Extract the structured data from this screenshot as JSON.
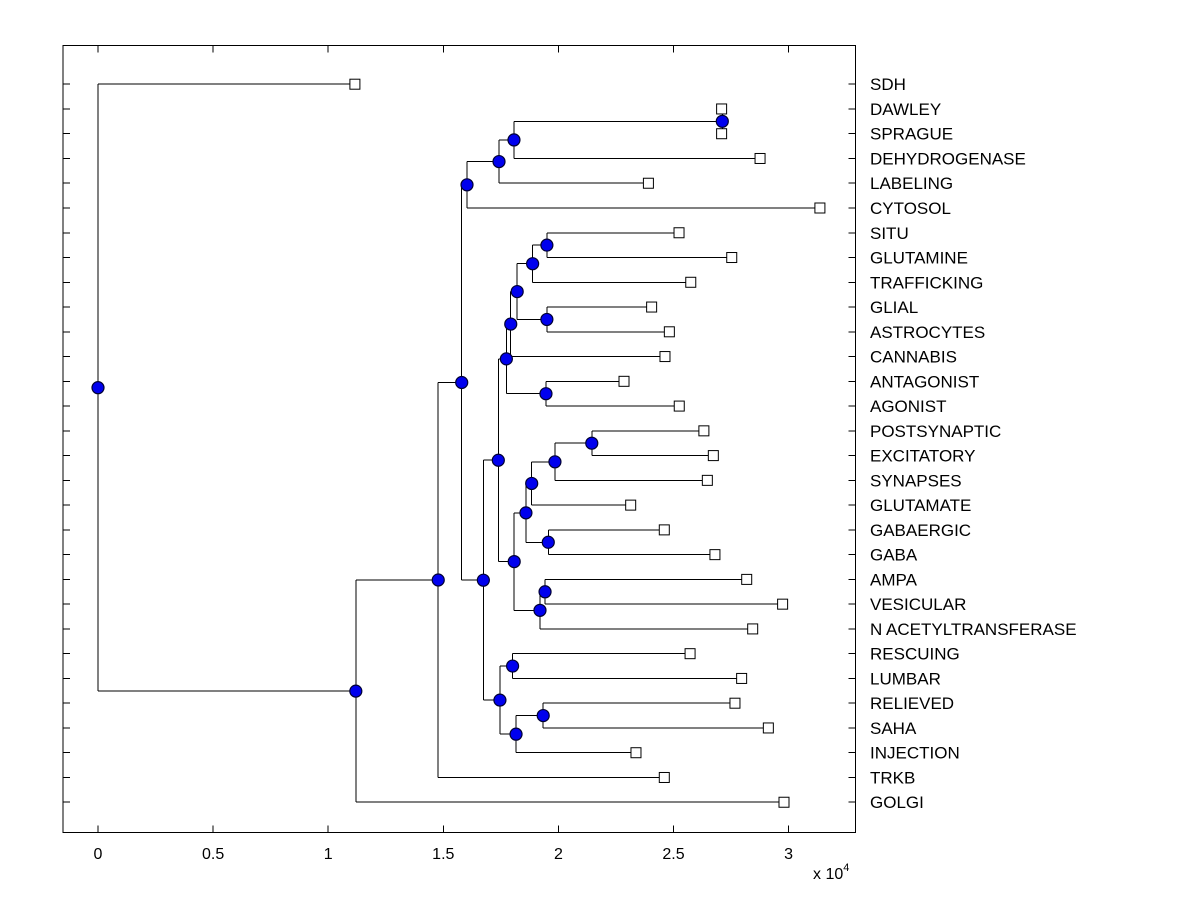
{
  "figure": {
    "background": "#ffffff",
    "kind": "dendrogram-plot"
  },
  "style": {
    "line_color": "#000000",
    "internal_node_fill": "#0000EE",
    "internal_node_edge": "#000033",
    "leaf_marker_fill": "#FFFFFF",
    "leaf_marker_edge": "#000000",
    "text_color": "#000000"
  },
  "chart_data": {
    "type": "dendrogram",
    "title": "",
    "xlabel": "",
    "ylabel": "",
    "grid": false,
    "legend": null,
    "orientation": "left-to-right",
    "x_axis": {
      "unit_scale": 10000,
      "multiplier_prefix": "x 10",
      "multiplier_exponent": "4",
      "range": [
        -0.152,
        3.291
      ],
      "ticks": [
        {
          "value": 0,
          "label": "0"
        },
        {
          "value": 0.5,
          "label": "0.5"
        },
        {
          "value": 1,
          "label": "1"
        },
        {
          "value": 1.5,
          "label": "1.5"
        },
        {
          "value": 2,
          "label": "2"
        },
        {
          "value": 2.5,
          "label": "2.5"
        },
        {
          "value": 3,
          "label": "3"
        }
      ]
    },
    "leaf_order_note": "distances are in x-axis units (multiply by 10^4)",
    "tree": {
      "dist": 0,
      "children": [
        {
          "name": "SDH",
          "dist": 1.116
        },
        {
          "dist": 1.12,
          "children": [
            {
              "dist": 1.478,
              "children": [
                {
                  "dist": 1.58,
                  "children": [
                    {
                      "dist": 1.603,
                      "children": [
                        {
                          "dist": 1.742,
                          "children": [
                            {
                              "dist": 1.807,
                              "children": [
                                {
                                  "dist": 2.712,
                                  "children": [
                                    {
                                      "name": "DAWLEY",
                                      "dist": 2.709
                                    },
                                    {
                                      "name": "SPRAGUE",
                                      "dist": 2.709
                                    }
                                  ]
                                },
                                {
                                  "name": "DEHYDROGENASE",
                                  "dist": 2.876
                                }
                              ]
                            },
                            {
                              "name": "LABELING",
                              "dist": 2.391
                            }
                          ]
                        },
                        {
                          "name": "CYTOSOL",
                          "dist": 3.136
                        }
                      ]
                    },
                    {
                      "dist": 1.674,
                      "children": [
                        {
                          "dist": 1.739,
                          "children": [
                            {
                              "dist": 1.774,
                              "children": [
                                {
                                  "dist": 1.793,
                                  "children": [
                                    {
                                      "dist": 1.821,
                                      "children": [
                                        {
                                          "dist": 1.888,
                                          "children": [
                                            {
                                              "dist": 1.95,
                                              "children": [
                                                {
                                                  "name": "SITU",
                                                  "dist": 2.524
                                                },
                                                {
                                                  "name": "GLUTAMINE",
                                                  "dist": 2.753
                                                }
                                              ]
                                            },
                                            {
                                              "name": "TRAFFICKING",
                                              "dist": 2.575
                                            }
                                          ]
                                        },
                                        {
                                          "dist": 1.95,
                                          "children": [
                                            {
                                              "name": "GLIAL",
                                              "dist": 2.405
                                            },
                                            {
                                              "name": "ASTROCYTES",
                                              "dist": 2.482
                                            }
                                          ]
                                        }
                                      ]
                                    },
                                    {
                                      "name": "CANNABIS",
                                      "dist": 2.463
                                    }
                                  ]
                                },
                                {
                                  "dist": 1.946,
                                  "children": [
                                    {
                                      "name": "ANTAGONIST",
                                      "dist": 2.285
                                    },
                                    {
                                      "name": "AGONIST",
                                      "dist": 2.525
                                    }
                                  ]
                                }
                              ]
                            },
                            {
                              "dist": 1.808,
                              "children": [
                                {
                                  "dist": 1.859,
                                  "children": [
                                    {
                                      "dist": 1.884,
                                      "children": [
                                        {
                                          "dist": 1.985,
                                          "children": [
                                            {
                                              "dist": 2.145,
                                              "children": [
                                                {
                                                  "name": "POSTSYNAPTIC",
                                                  "dist": 2.632
                                                },
                                                {
                                                  "name": "EXCITATORY",
                                                  "dist": 2.673
                                                }
                                              ]
                                            },
                                            {
                                              "name": "SYNAPSES",
                                              "dist": 2.647
                                            }
                                          ]
                                        },
                                        {
                                          "name": "GLUTAMATE",
                                          "dist": 2.314
                                        }
                                      ]
                                    },
                                    {
                                      "dist": 1.956,
                                      "children": [
                                        {
                                          "name": "GABAERGIC",
                                          "dist": 2.46
                                        },
                                        {
                                          "name": "GABA",
                                          "dist": 2.68
                                        }
                                      ]
                                    }
                                  ]
                                },
                                {
                                  "dist": 1.92,
                                  "children": [
                                    {
                                      "dist": 1.942,
                                      "children": [
                                        {
                                          "name": "AMPA",
                                          "dist": 2.818
                                        },
                                        {
                                          "name": "VESICULAR",
                                          "dist": 2.974
                                        }
                                      ]
                                    },
                                    {
                                      "name": "N ACETYLTRANSFERASE",
                                      "dist": 2.844
                                    }
                                  ]
                                }
                              ]
                            }
                          ]
                        },
                        {
                          "dist": 1.746,
                          "children": [
                            {
                              "dist": 1.801,
                              "children": [
                                {
                                  "name": "RESCUING",
                                  "dist": 2.572
                                },
                                {
                                  "name": "LUMBAR",
                                  "dist": 2.796
                                }
                              ]
                            },
                            {
                              "dist": 1.816,
                              "children": [
                                {
                                  "dist": 1.934,
                                  "children": [
                                    {
                                      "name": "RELIEVED",
                                      "dist": 2.767
                                    },
                                    {
                                      "name": "SAHA",
                                      "dist": 2.912
                                    }
                                  ]
                                },
                                {
                                  "name": "INJECTION",
                                  "dist": 2.337
                                }
                              ]
                            }
                          ]
                        }
                      ]
                    }
                  ]
                },
                {
                  "name": "TRKB",
                  "dist": 2.46
                }
              ]
            },
            {
              "name": "GOLGI",
              "dist": 2.98
            }
          ]
        }
      ]
    }
  }
}
